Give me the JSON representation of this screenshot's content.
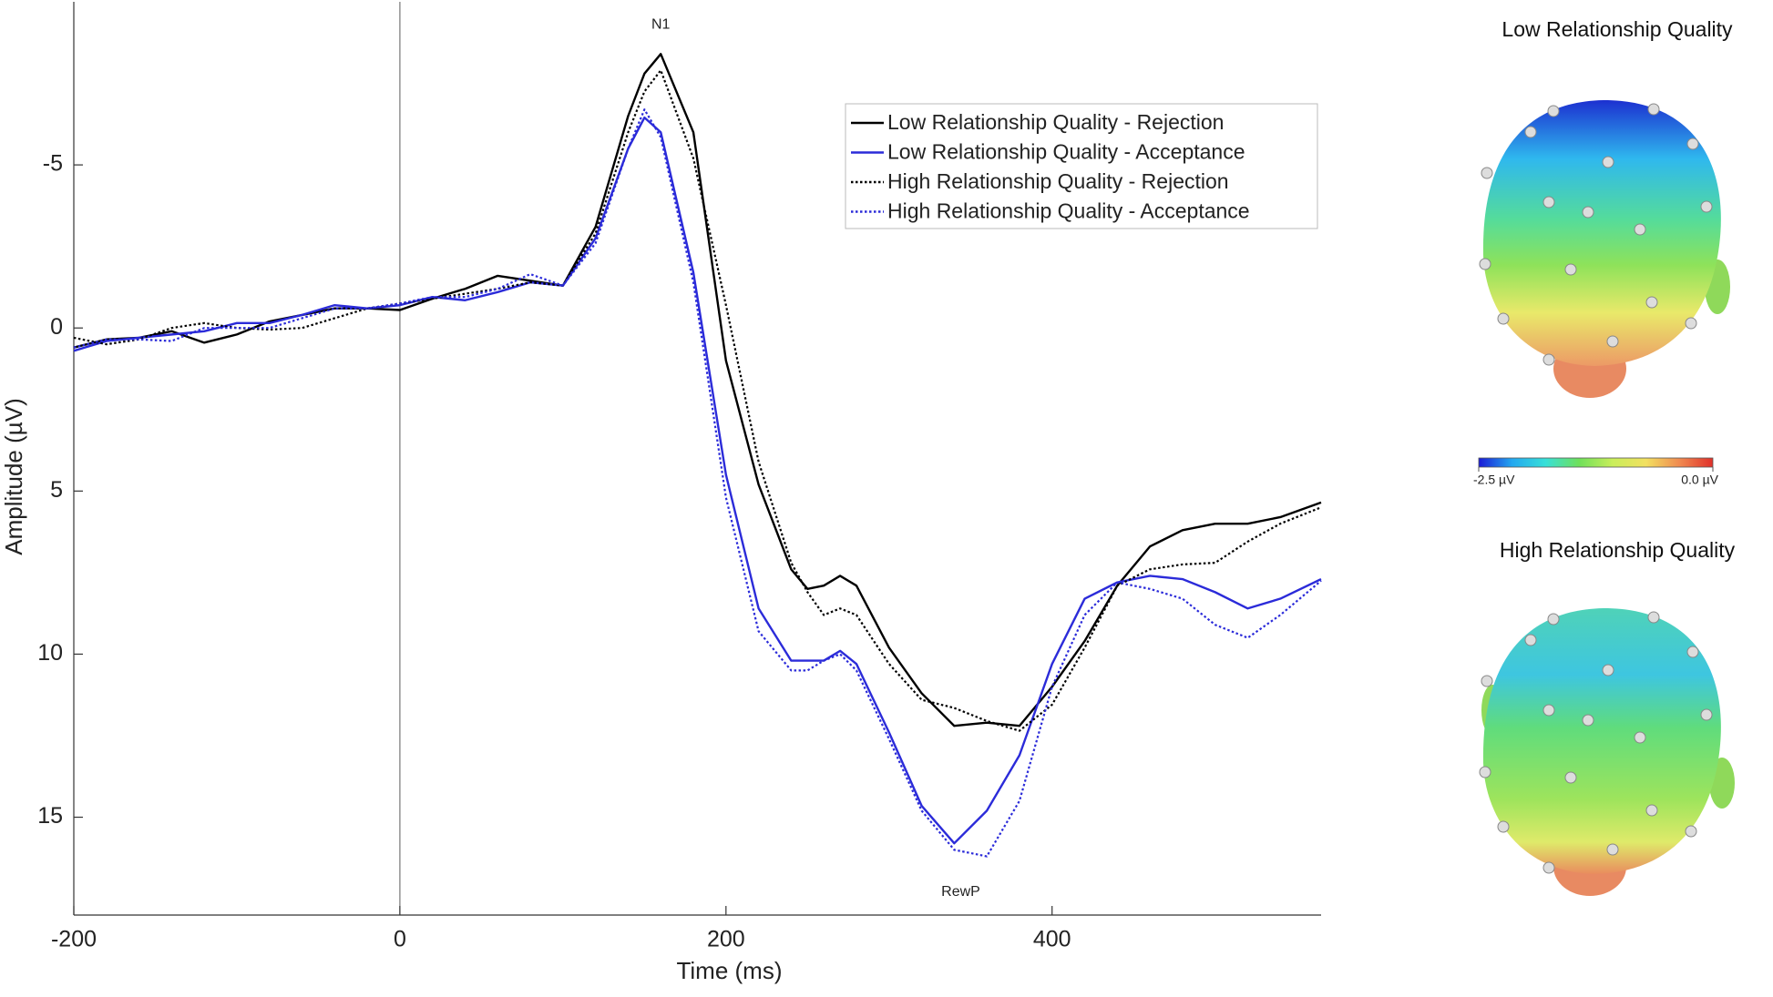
{
  "chart_data": [
    {
      "type": "line",
      "xlabel": "Time (ms)",
      "ylabel": "Amplitude (µV)",
      "x": [
        -200,
        -180,
        -160,
        -140,
        -120,
        -100,
        -80,
        -60,
        -40,
        -20,
        0,
        20,
        40,
        60,
        80,
        100,
        120,
        140,
        150,
        160,
        180,
        200,
        220,
        240,
        250,
        260,
        270,
        280,
        300,
        320,
        340,
        360,
        380,
        400,
        420,
        440,
        460,
        480,
        500,
        520,
        540,
        565
      ],
      "series": [
        {
          "name": "Low Relationship Quality - Rejection",
          "color": "#000000",
          "dashed": false,
          "values": [
            0.6,
            0.35,
            0.3,
            0.1,
            0.45,
            0.2,
            -0.2,
            -0.4,
            -0.6,
            -0.6,
            -0.55,
            -0.9,
            -1.2,
            -1.6,
            -1.45,
            -1.3,
            -3.1,
            -6.5,
            -7.8,
            -8.4,
            -6.0,
            1.0,
            4.8,
            7.4,
            8.0,
            7.9,
            7.6,
            7.9,
            9.8,
            11.2,
            12.2,
            12.1,
            12.2,
            11.0,
            9.6,
            7.9,
            6.7,
            6.2,
            6.0,
            6.0,
            5.8,
            5.35
          ]
        },
        {
          "name": "Low Relationship Quality - Acceptance",
          "color": "#2b2bd9",
          "dashed": false,
          "values": [
            0.7,
            0.4,
            0.3,
            0.2,
            0.1,
            -0.15,
            -0.15,
            -0.4,
            -0.7,
            -0.6,
            -0.7,
            -0.95,
            -0.85,
            -1.1,
            -1.4,
            -1.3,
            -2.75,
            -5.5,
            -6.45,
            -6.0,
            -1.7,
            4.5,
            8.6,
            10.2,
            10.2,
            10.2,
            9.9,
            10.3,
            12.4,
            14.65,
            15.8,
            14.8,
            13.1,
            10.3,
            8.3,
            7.8,
            7.6,
            7.7,
            8.1,
            8.6,
            8.3,
            7.7
          ]
        },
        {
          "name": "High Relationship Quality - Rejection",
          "color": "#000000",
          "dashed": true,
          "values": [
            0.3,
            0.5,
            0.35,
            0,
            -0.15,
            0,
            0.05,
            0,
            -0.3,
            -0.6,
            -0.75,
            -0.9,
            -1.05,
            -1.2,
            -1.4,
            -1.3,
            -2.9,
            -6.0,
            -7.25,
            -7.9,
            -5.2,
            -0.7,
            4.1,
            7.2,
            8.1,
            8.8,
            8.6,
            8.8,
            10.3,
            11.4,
            11.65,
            12.05,
            12.35,
            11.55,
            9.8,
            7.9,
            7.4,
            7.25,
            7.2,
            6.55,
            6.0,
            5.5
          ]
        },
        {
          "name": "High Relationship Quality - Acceptance",
          "color": "#2b2bd9",
          "dashed": true,
          "values": [
            0.6,
            0.35,
            0.35,
            0.4,
            0,
            0,
            0,
            -0.3,
            -0.6,
            -0.6,
            -0.75,
            -0.95,
            -0.95,
            -1.2,
            -1.65,
            -1.3,
            -2.6,
            -5.5,
            -6.7,
            -5.85,
            -1.4,
            5.2,
            9.3,
            10.5,
            10.5,
            10.2,
            10.0,
            10.5,
            12.6,
            14.8,
            16.0,
            16.2,
            14.5,
            11.0,
            8.8,
            7.8,
            8.0,
            8.3,
            9.1,
            9.5,
            8.8,
            7.75
          ]
        }
      ],
      "xlim": [
        -200,
        565
      ],
      "xticks": [
        -200,
        0,
        200,
        400
      ],
      "ylim": [
        -10,
        18
      ],
      "yticks": [
        -5,
        0,
        5,
        10,
        15
      ],
      "y_reversed": true,
      "xline": 0,
      "legend": "top-right",
      "annotations": [
        {
          "text": "N1",
          "x": 160,
          "y": -9.3
        },
        {
          "text": "RewP",
          "x": 344,
          "y": 17.3
        }
      ]
    },
    {
      "type": "topomap",
      "panels": [
        "Low Relationship Quality",
        "High Relationship Quality"
      ],
      "clim": [
        -2.5,
        0
      ],
      "cticks": [
        {
          "value": -2.5,
          "label": "-2.5 µV"
        },
        {
          "value": 0,
          "label": "0.0 µV"
        }
      ],
      "colormap": [
        "#1a1ad6",
        "#23a8f0",
        "#37e0d8",
        "#6fe05a",
        "#c9ee5a",
        "#f2e060",
        "#f08a50",
        "#e0302a"
      ]
    }
  ]
}
